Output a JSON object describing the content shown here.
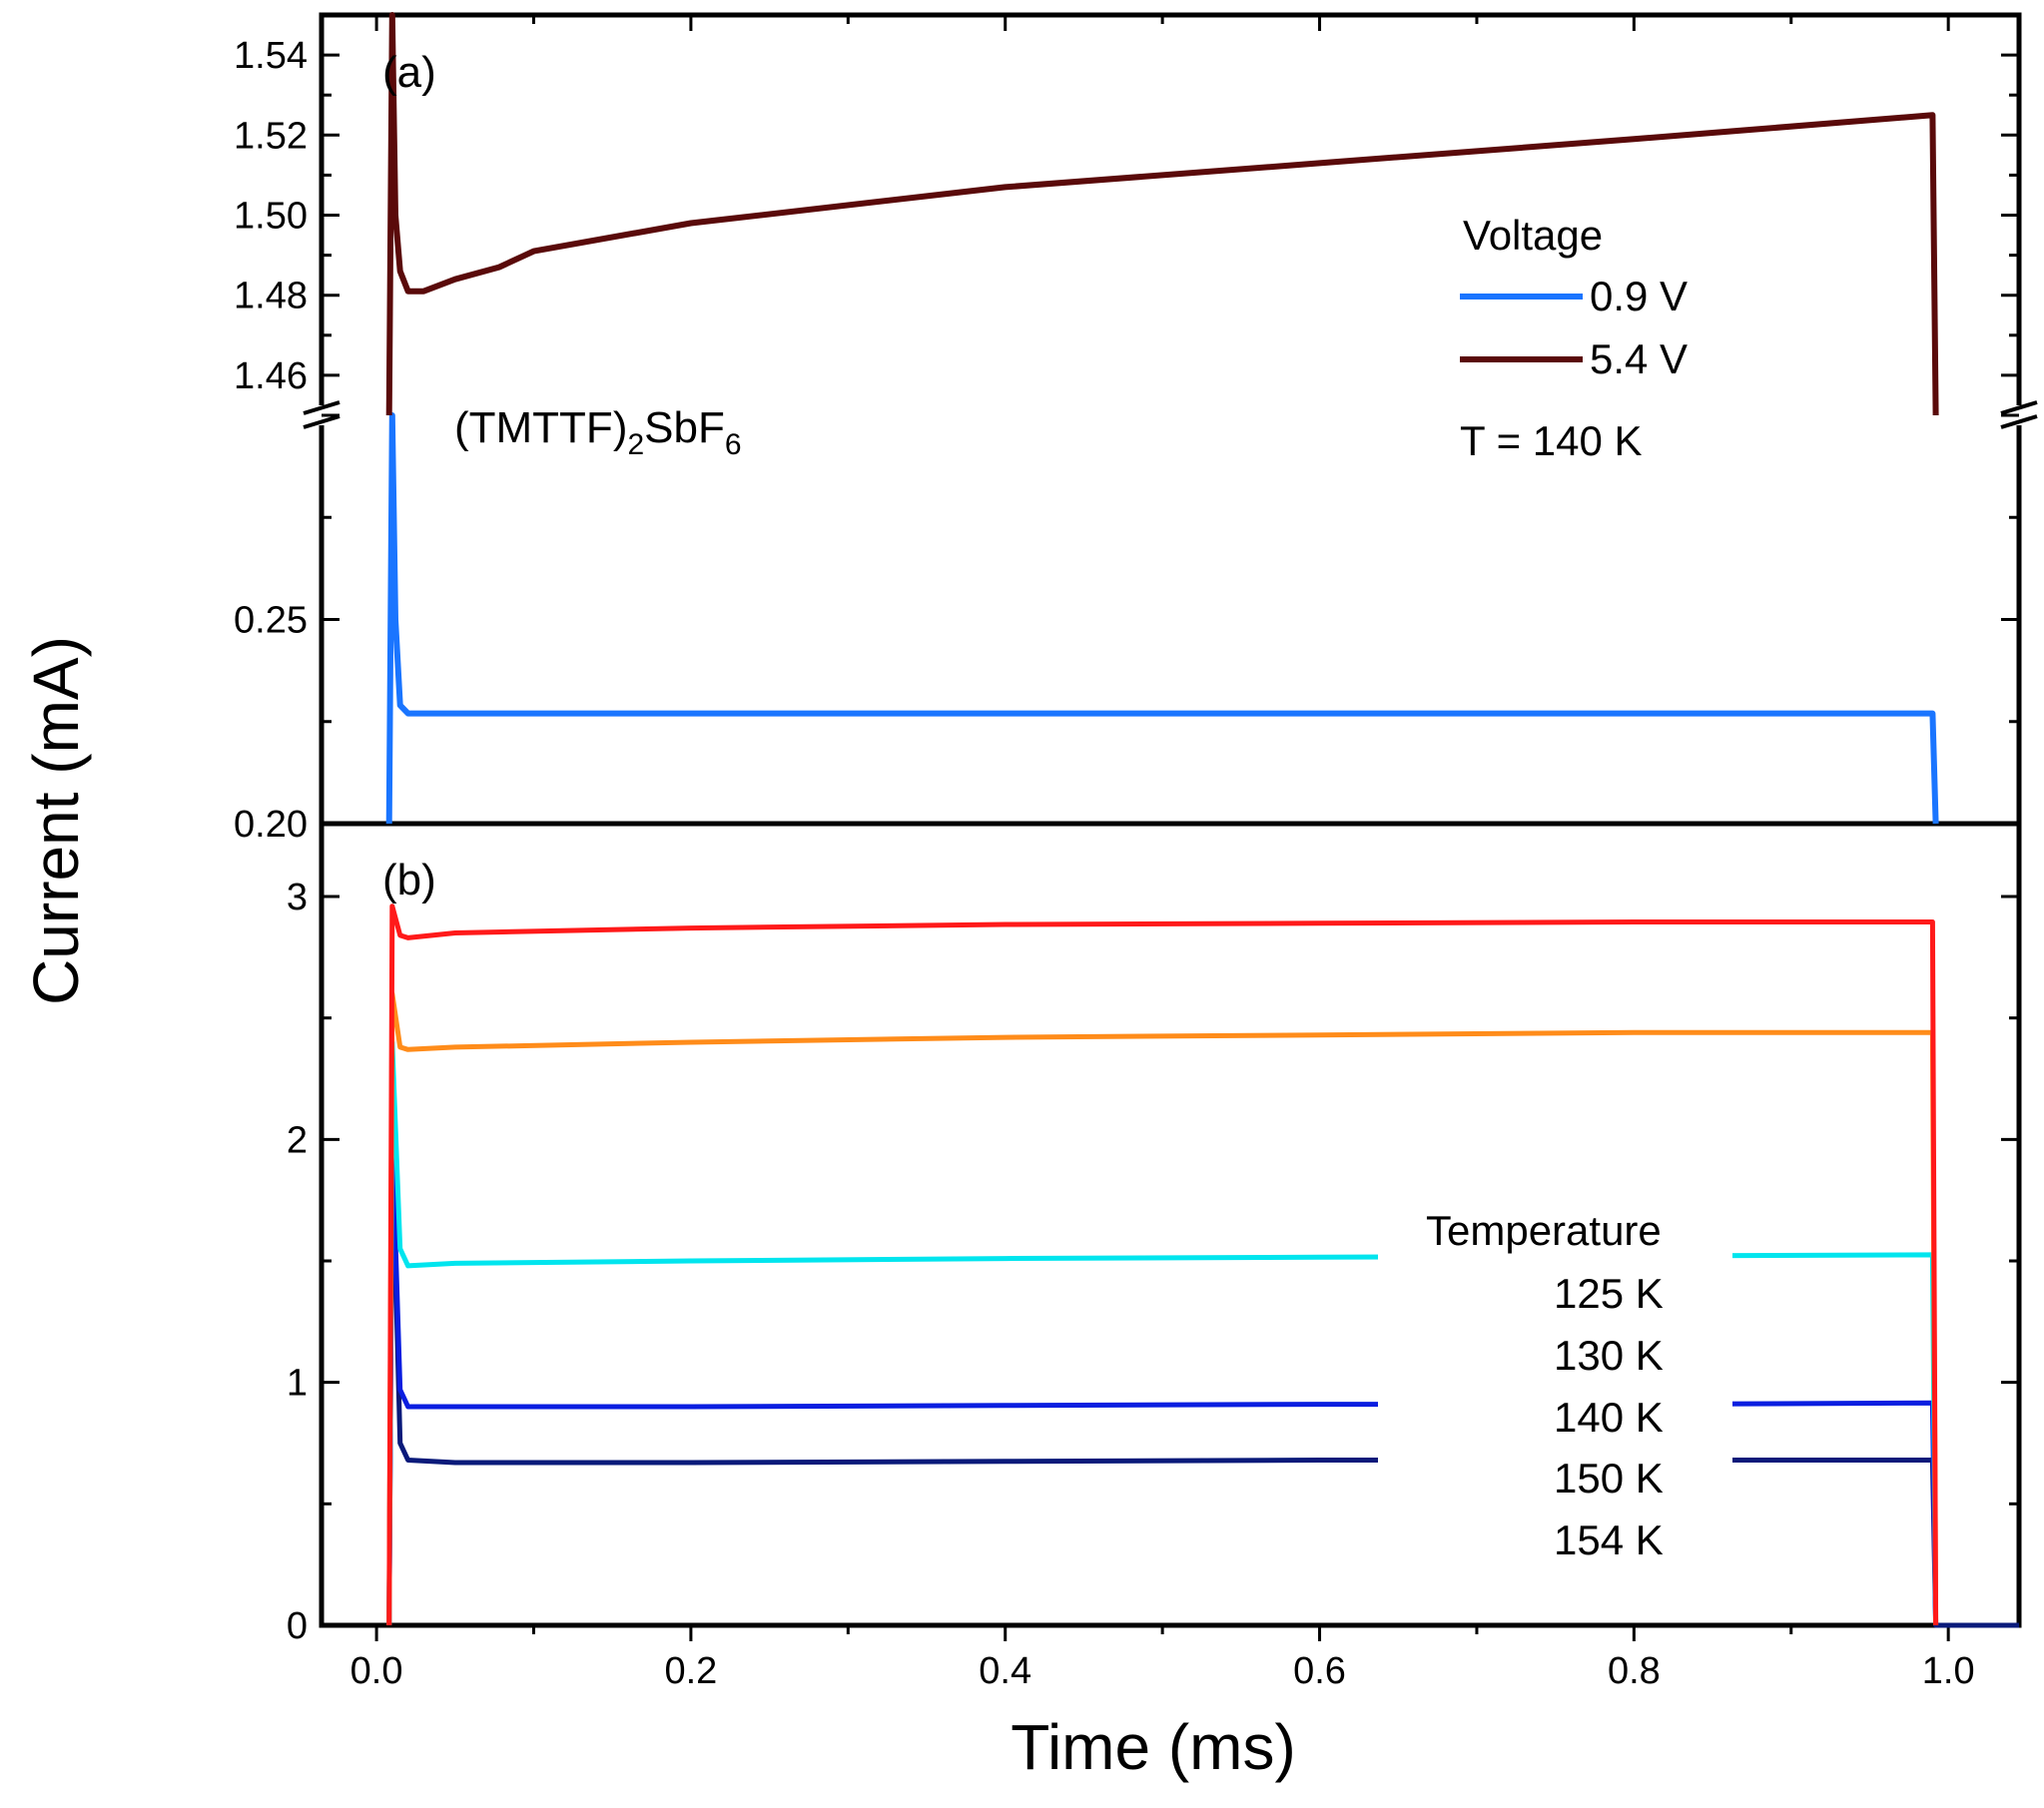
{
  "chart_data": {
    "type": "line",
    "xlabel": "Time (ms)",
    "ylabel": "Current (mA)",
    "xlim": [
      -0.035,
      1.045
    ],
    "x_ticks": [
      "0.0",
      "0.2",
      "0.4",
      "0.6",
      "0.8",
      "1.0"
    ],
    "panels": [
      {
        "id": "a",
        "panel_label": "(a)",
        "compound": {
          "prefix": "(TMTTF)",
          "sub1": "2",
          "middle": "SbF",
          "sub2": "6"
        },
        "broken_axis": true,
        "upper_range": {
          "ylim": [
            1.45,
            1.55
          ],
          "tick_labels": [
            "1.46",
            "1.48",
            "1.50",
            "1.52",
            "1.54"
          ]
        },
        "lower_range": {
          "ylim": [
            0.2,
            0.3
          ],
          "tick_labels": [
            "0.20",
            "0.25"
          ]
        },
        "legend": {
          "title": "Voltage",
          "entries": [
            {
              "label": "0.9 V",
              "color": "#1a75ff"
            },
            {
              "label": "5.4 V",
              "color": "#5a0a0a"
            }
          ],
          "note": "T = 140 K"
        },
        "series": [
          {
            "name": "0.9 V",
            "color": "#1a75ff",
            "range": "lower",
            "x": [
              0.008,
              0.01,
              0.012,
              0.015,
              0.02,
              0.05,
              0.078,
              0.1,
              0.2,
              0.4,
              0.6,
              0.8,
              0.99,
              0.992
            ],
            "y": [
              0.2,
              0.3,
              0.25,
              0.229,
              0.227,
              0.227,
              0.227,
              0.227,
              0.227,
              0.227,
              0.227,
              0.227,
              0.227,
              0.2
            ]
          },
          {
            "name": "5.4 V",
            "color": "#5a0a0a",
            "range": "upper",
            "x": [
              0.008,
              0.01,
              0.012,
              0.015,
              0.02,
              0.03,
              0.05,
              0.078,
              0.1,
              0.2,
              0.4,
              0.6,
              0.8,
              0.99,
              0.992
            ],
            "y": [
              1.45,
              1.55,
              1.5,
              1.486,
              1.481,
              1.481,
              1.484,
              1.487,
              1.491,
              1.498,
              1.507,
              1.513,
              1.519,
              1.525,
              1.45
            ]
          }
        ]
      },
      {
        "id": "b",
        "panel_label": "(b)",
        "ylim": [
          0,
          3.3
        ],
        "tick_labels": [
          "0",
          "1",
          "2",
          "3"
        ],
        "legend": {
          "title": "Temperature",
          "entries": [
            {
              "label": "125 K",
              "color": "#0a1a7a"
            },
            {
              "label": "130 K",
              "color": "#0a1ee0"
            },
            {
              "label": "140 K",
              "color": "#00e5ee"
            },
            {
              "label": "150 K",
              "color": "#ff8c1a"
            },
            {
              "label": "154 K",
              "color": "#ff1a1a"
            }
          ]
        },
        "series": [
          {
            "name": "125 K",
            "color": "#0a1a7a",
            "x": [
              0.008,
              0.01,
              0.015,
              0.02,
              0.05,
              0.2,
              0.4,
              0.6,
              0.8,
              0.99,
              0.992,
              1.0,
              1.045
            ],
            "y": [
              0,
              2.0,
              0.75,
              0.68,
              0.67,
              0.67,
              0.675,
              0.68,
              0.68,
              0.68,
              0,
              0,
              0
            ]
          },
          {
            "name": "130 K",
            "color": "#0a1ee0",
            "x": [
              0.008,
              0.01,
              0.015,
              0.02,
              0.05,
              0.2,
              0.4,
              0.6,
              0.8,
              0.99,
              0.992
            ],
            "y": [
              0,
              2.0,
              0.97,
              0.9,
              0.9,
              0.9,
              0.905,
              0.91,
              0.91,
              0.915,
              0
            ]
          },
          {
            "name": "140 K",
            "color": "#00e5ee",
            "x": [
              0.008,
              0.01,
              0.015,
              0.02,
              0.05,
              0.2,
              0.4,
              0.6,
              0.8,
              0.99,
              0.992
            ],
            "y": [
              0,
              2.4,
              1.55,
              1.48,
              1.49,
              1.5,
              1.51,
              1.515,
              1.52,
              1.525,
              0
            ]
          },
          {
            "name": "150 K",
            "color": "#ff8c1a",
            "x": [
              0.008,
              0.01,
              0.015,
              0.02,
              0.05,
              0.2,
              0.4,
              0.6,
              0.8,
              0.99,
              0.992
            ],
            "y": [
              0,
              2.6,
              2.38,
              2.37,
              2.38,
              2.4,
              2.42,
              2.43,
              2.44,
              2.44,
              0
            ]
          },
          {
            "name": "154 K",
            "color": "#ff1a1a",
            "x": [
              0.008,
              0.01,
              0.015,
              0.02,
              0.05,
              0.2,
              0.4,
              0.6,
              0.8,
              0.99,
              0.992
            ],
            "y": [
              0,
              2.96,
              2.84,
              2.83,
              2.85,
              2.87,
              2.885,
              2.89,
              2.895,
              2.895,
              0
            ]
          }
        ]
      }
    ]
  }
}
